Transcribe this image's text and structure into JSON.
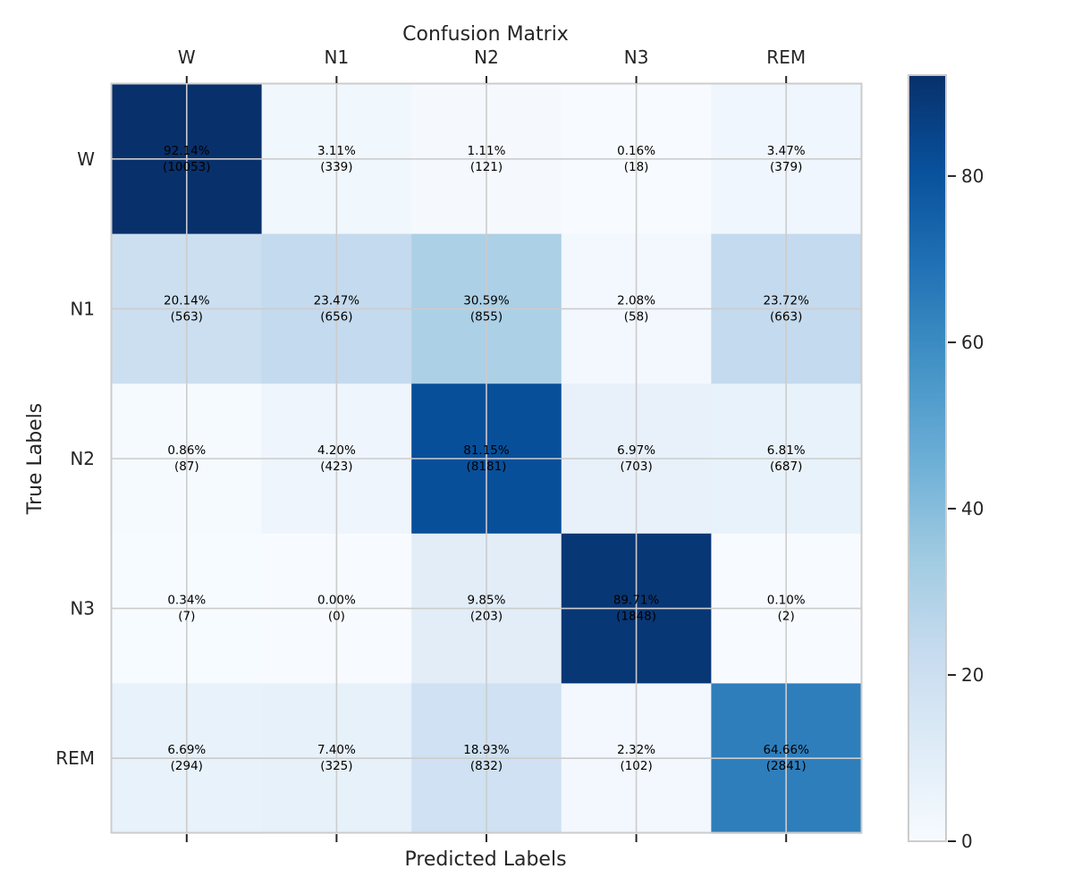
{
  "chart_data": {
    "type": "heatmap",
    "title": "Confusion Matrix",
    "xlabel": "Predicted Labels",
    "ylabel": "True Labels",
    "x_categories": [
      "W",
      "N1",
      "N2",
      "N3",
      "REM"
    ],
    "y_categories": [
      "W",
      "N1",
      "N2",
      "N3",
      "REM"
    ],
    "x_tick_position": "top",
    "grid": true,
    "colormap": "Blues",
    "colorbar": {
      "range": [
        0,
        92.14
      ],
      "ticks": [
        0,
        20,
        40,
        60,
        80
      ],
      "tick_labels": [
        "0",
        "20",
        "40",
        "60",
        "80"
      ],
      "placement": "right"
    },
    "percent": [
      [
        92.14,
        3.11,
        1.11,
        0.16,
        3.47
      ],
      [
        20.14,
        23.47,
        30.59,
        2.08,
        23.72
      ],
      [
        0.86,
        4.2,
        81.15,
        6.97,
        6.81
      ],
      [
        0.34,
        0.0,
        9.85,
        89.71,
        0.1
      ],
      [
        6.69,
        7.4,
        18.93,
        2.32,
        64.66
      ]
    ],
    "percent_labels": [
      [
        "92.14%",
        "3.11%",
        "1.11%",
        "0.16%",
        "3.47%"
      ],
      [
        "20.14%",
        "23.47%",
        "30.59%",
        "2.08%",
        "23.72%"
      ],
      [
        "0.86%",
        "4.20%",
        "81.15%",
        "6.97%",
        "6.81%"
      ],
      [
        "0.34%",
        "0.00%",
        "9.85%",
        "89.71%",
        "0.10%"
      ],
      [
        "6.69%",
        "7.40%",
        "18.93%",
        "2.32%",
        "64.66%"
      ]
    ],
    "counts": [
      [
        10053,
        339,
        121,
        18,
        379
      ],
      [
        563,
        656,
        855,
        58,
        663
      ],
      [
        87,
        423,
        8181,
        703,
        687
      ],
      [
        7,
        0,
        203,
        1848,
        2
      ],
      [
        294,
        325,
        832,
        102,
        2841
      ]
    ],
    "count_labels": [
      [
        "(10053)",
        "(339)",
        "(121)",
        "(18)",
        "(379)"
      ],
      [
        "(563)",
        "(656)",
        "(855)",
        "(58)",
        "(663)"
      ],
      [
        "(87)",
        "(423)",
        "(8181)",
        "(703)",
        "(687)"
      ],
      [
        "(7)",
        "(0)",
        "(203)",
        "(1848)",
        "(2)"
      ],
      [
        "(294)",
        "(325)",
        "(832)",
        "(102)",
        "(2841)"
      ]
    ]
  },
  "colors": {
    "colormap_stops": [
      "#f7fbff",
      "#deebf7",
      "#c6dbef",
      "#9ecae1",
      "#6baed6",
      "#4292c6",
      "#2171b5",
      "#08519c",
      "#08306b"
    ],
    "grid": "#cccccc",
    "frame": "#cccccc",
    "text": "#262626",
    "cell_text": "#000000"
  }
}
